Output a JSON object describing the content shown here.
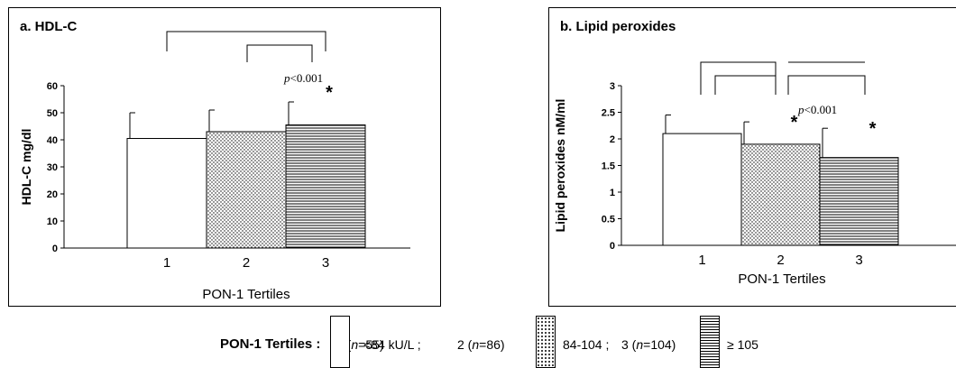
{
  "chart_data": [
    {
      "type": "bar",
      "title": "a. HDL-C",
      "ylabel": "HDL-C mg/dl",
      "xlabel": "PON-1 Tertiles",
      "categories": [
        "1",
        "2",
        "3"
      ],
      "values": [
        40.5,
        43,
        45.5
      ],
      "errors": [
        9.5,
        8,
        8.5
      ],
      "ylim": [
        0,
        60
      ],
      "yticks": [
        "0",
        "10",
        "20",
        "30",
        "40",
        "50",
        "60"
      ],
      "fills": [
        "solid",
        "dots",
        "hlines"
      ],
      "significance": [
        false,
        false,
        true
      ],
      "annotation": {
        "text": "<0.001",
        "prefix": "p"
      },
      "star": "*"
    },
    {
      "type": "bar",
      "title": "b. Lipid peroxides",
      "ylabel": "Lipid peroxides nM/ml",
      "xlabel": "PON-1 Tertiles",
      "categories": [
        "1",
        "2",
        "3"
      ],
      "values": [
        2.1,
        1.9,
        1.65
      ],
      "errors": [
        0.35,
        0.42,
        0.55
      ],
      "ylim": [
        0,
        3
      ],
      "yticks": [
        "0",
        "0.5",
        "1",
        "1.5",
        "2",
        "2.5",
        "3"
      ],
      "fills": [
        "solid",
        "dots",
        "hlines"
      ],
      "significance": [
        false,
        true,
        true
      ],
      "annotation": {
        "text": "<0.001",
        "prefix": "p"
      },
      "star": "*"
    }
  ],
  "legend": {
    "title": "PON-1 Tertiles :",
    "items": [
      {
        "pre": "1 (",
        "n": "n",
        "post": "=55)",
        "range": "<84 kU/L ;"
      },
      {
        "pre": "2 (",
        "n": "n",
        "post": "=86)",
        "range": "84-104 ;"
      },
      {
        "pre": "3 (",
        "n": "n",
        "post": "=104)",
        "range": "≥ 105"
      }
    ]
  }
}
